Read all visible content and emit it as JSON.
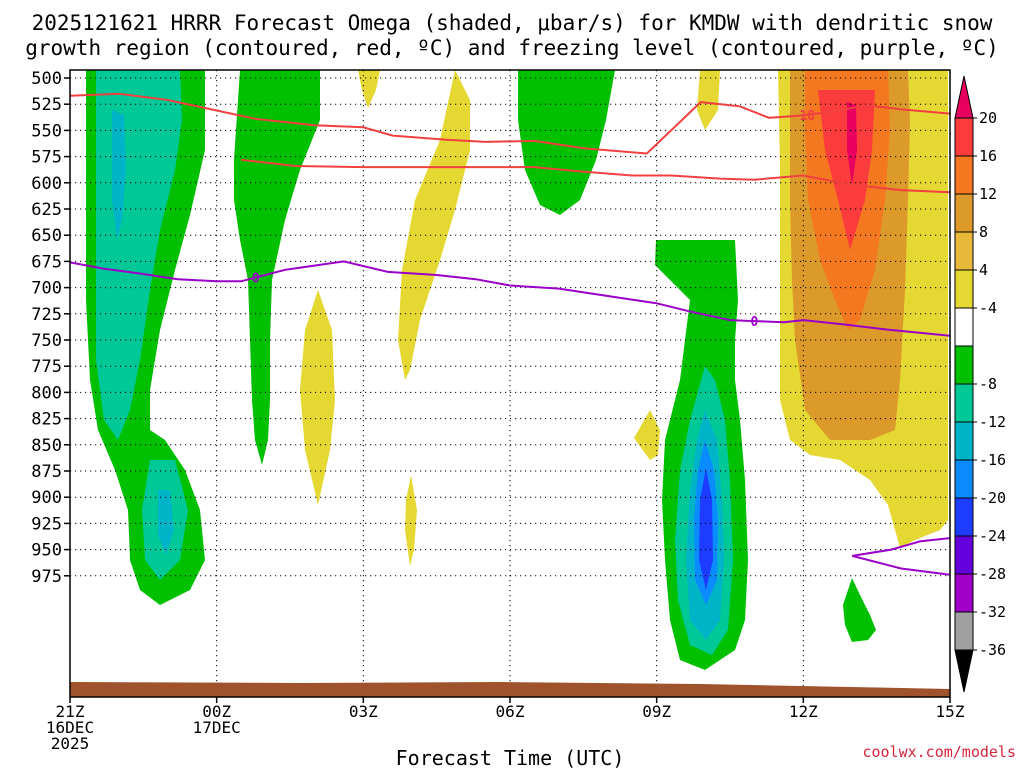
{
  "chart_data": {
    "type": "contour",
    "title_line1": "2025121621 HRRR Forecast Omega (shaded, μbar/s) for KMDW with dendritic snow",
    "title_line2": "growth region (contoured, red, ºC) and freezing level (contoured, purple, ºC)",
    "xlabel": "Forecast Time (UTC)",
    "credit": "coolwx.com/models",
    "y_levels": [
      500,
      525,
      550,
      575,
      600,
      625,
      650,
      675,
      700,
      725,
      750,
      775,
      800,
      825,
      850,
      875,
      900,
      925,
      950,
      975
    ],
    "x_range_hours": [
      0,
      18
    ],
    "x_ticks": [
      {
        "hour": 0,
        "lines": [
          "21Z",
          "16DEC",
          "2025"
        ]
      },
      {
        "hour": 3,
        "lines": [
          "00Z",
          "17DEC"
        ]
      },
      {
        "hour": 6,
        "lines": [
          "03Z"
        ]
      },
      {
        "hour": 9,
        "lines": [
          "06Z"
        ]
      },
      {
        "hour": 12,
        "lines": [
          "09Z"
        ]
      },
      {
        "hour": 15,
        "lines": [
          "12Z"
        ]
      },
      {
        "hour": 18,
        "lines": [
          "15Z"
        ]
      }
    ],
    "colorbar": {
      "labels": [
        "20",
        "16",
        "12",
        "8",
        "4",
        "-4",
        "-8",
        "-12",
        "-16",
        "-20",
        "-24",
        "-28",
        "-32",
        "-36"
      ],
      "colors": [
        "#e8005e",
        "#fb3c3c",
        "#f47820",
        "#dc9a2a",
        "#e7b83a",
        "#e6d832",
        "#ffffff",
        "#00c000",
        "#00c896",
        "#00b4c8",
        "#0a8cff",
        "#1e3cff",
        "#6400dc",
        "#a000c8",
        "#a0a0a0",
        "#000000"
      ]
    },
    "freezing_level": {
      "label": "0",
      "color": "#9b00c8",
      "points": [
        [
          0,
          676
        ],
        [
          0.7,
          682
        ],
        [
          1.5,
          687
        ],
        [
          2.2,
          692
        ],
        [
          3.0,
          694
        ],
        [
          3.5,
          694
        ],
        [
          3.9,
          689
        ],
        [
          4.4,
          683
        ],
        [
          5.0,
          679
        ],
        [
          5.6,
          675
        ],
        [
          6.5,
          685
        ],
        [
          7.5,
          688
        ],
        [
          8.3,
          692
        ],
        [
          9.0,
          698
        ],
        [
          10.0,
          701
        ],
        [
          11.0,
          708
        ],
        [
          12.0,
          715
        ],
        [
          12.7,
          723
        ],
        [
          13.5,
          731
        ],
        [
          14.0,
          732
        ],
        [
          14.6,
          733
        ],
        [
          15.0,
          731
        ],
        [
          15.8,
          735
        ],
        [
          16.7,
          740
        ],
        [
          18.0,
          746
        ]
      ],
      "label_at_hour": 3.8
    },
    "freezing_level_lower": {
      "points": [
        [
          16.0,
          956
        ],
        [
          16.8,
          950
        ],
        [
          17.4,
          942
        ],
        [
          18.0,
          939
        ]
      ],
      "tail": [
        [
          16.0,
          956
        ],
        [
          17.0,
          968
        ],
        [
          18.0,
          974
        ]
      ]
    },
    "dgz_top": {
      "label": "-18",
      "color": "#f04040",
      "points": [
        [
          0,
          517
        ],
        [
          1.0,
          515
        ],
        [
          2.0,
          521
        ],
        [
          3.0,
          531
        ],
        [
          3.8,
          539
        ],
        [
          5.0,
          545
        ],
        [
          6.0,
          547
        ],
        [
          6.6,
          555
        ],
        [
          7.7,
          559
        ],
        [
          8.5,
          561
        ],
        [
          9.5,
          560
        ],
        [
          10.5,
          567
        ],
        [
          11.8,
          572
        ],
        [
          12.9,
          523
        ],
        [
          13.7,
          527
        ],
        [
          14.3,
          538
        ],
        [
          14.9,
          536
        ],
        [
          15.6,
          532
        ],
        [
          16.3,
          526
        ],
        [
          17.0,
          530
        ],
        [
          18.0,
          534
        ]
      ],
      "label_at_hour": 15.0
    },
    "dgz_bottom": {
      "color": "#f04040",
      "points": [
        [
          3.5,
          578
        ],
        [
          4.6,
          584
        ],
        [
          6.0,
          585
        ],
        [
          7.3,
          585
        ],
        [
          8.8,
          585
        ],
        [
          9.5,
          585
        ],
        [
          10.4,
          589
        ],
        [
          11.5,
          593
        ],
        [
          12.3,
          593
        ],
        [
          13.3,
          596
        ],
        [
          14.0,
          597
        ],
        [
          15.0,
          593
        ],
        [
          16.0,
          602
        ],
        [
          17.0,
          607
        ],
        [
          18.0,
          609
        ]
      ]
    },
    "omega_regions": [
      {
        "name": "green-plume-1",
        "level": -4,
        "color": "#00c000"
      },
      {
        "name": "yellow-rise-right",
        "level": 4,
        "color": "#e6d832"
      },
      {
        "name": "blue-core-09z",
        "level": -20,
        "color": "#1e3cff"
      },
      {
        "name": "magenta-core-13z",
        "level": 20,
        "color": "#e8005e"
      }
    ]
  }
}
